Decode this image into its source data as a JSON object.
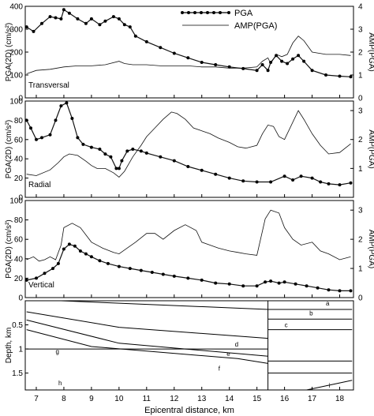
{
  "chart_data": {
    "type": "line",
    "legend": {
      "entries": [
        {
          "label": "PGA",
          "marker": "dot"
        },
        {
          "label": "AMP(PGA)",
          "marker": "none"
        }
      ],
      "placement": "top-right of first panel"
    },
    "x": {
      "label": "Epicentral distance, km",
      "range": [
        6.6,
        18.5
      ],
      "ticks": [
        "7",
        "8",
        "9",
        "10",
        "11",
        "12",
        "13",
        "14",
        "15",
        "16",
        "17",
        "18"
      ]
    },
    "panels": [
      {
        "label": "Transversal",
        "ylabel_left": "PGA(2D) (cm/s²)",
        "ylabel_right": "AMP(PGA)",
        "ylim_left": [
          0,
          400
        ],
        "yticks_left": [
          "0",
          "100",
          "200",
          "300",
          "400"
        ],
        "ylim_right": [
          0,
          4
        ],
        "yticks_right": [
          "0",
          "1",
          "2",
          "3",
          "4"
        ],
        "series": [
          {
            "name": "PGA",
            "axis": "left",
            "marker": "dot",
            "x": [
              6.65,
              6.9,
              7.2,
              7.5,
              7.7,
              7.9,
              8.0,
              8.2,
              8.5,
              8.8,
              9.0,
              9.3,
              9.5,
              9.8,
              10.0,
              10.2,
              10.4,
              10.6,
              11.0,
              11.5,
              12.0,
              12.5,
              13.0,
              13.5,
              14.0,
              14.5,
              15.0,
              15.2,
              15.4,
              15.5,
              15.7,
              15.9,
              16.1,
              16.3,
              16.5,
              16.7,
              17.0,
              17.5,
              18.0,
              18.4
            ],
            "y": [
              310,
              290,
              325,
              355,
              350,
              345,
              385,
              370,
              345,
              325,
              345,
              320,
              335,
              355,
              345,
              320,
              310,
              270,
              245,
              220,
              195,
              175,
              155,
              145,
              135,
              128,
              120,
              145,
              120,
              155,
              185,
              160,
              150,
              170,
              185,
              160,
              120,
              100,
              95,
              92
            ]
          },
          {
            "name": "AMP(PGA)",
            "axis": "right",
            "marker": "none",
            "x": [
              6.65,
              7.0,
              7.5,
              8.0,
              8.5,
              9.0,
              9.5,
              10.0,
              10.2,
              10.5,
              11.0,
              11.5,
              12.0,
              12.5,
              13.0,
              13.5,
              14.0,
              14.5,
              15.0,
              15.2,
              15.4,
              15.5,
              15.7,
              15.9,
              16.1,
              16.3,
              16.5,
              16.7,
              17.0,
              17.5,
              18.0,
              18.4
            ],
            "y": [
              1.05,
              1.2,
              1.25,
              1.35,
              1.4,
              1.4,
              1.45,
              1.6,
              1.5,
              1.45,
              1.45,
              1.4,
              1.4,
              1.4,
              1.35,
              1.35,
              1.3,
              1.3,
              1.35,
              1.6,
              1.75,
              1.5,
              1.9,
              1.8,
              1.9,
              2.4,
              2.7,
              2.5,
              2.0,
              1.9,
              1.9,
              1.85
            ]
          }
        ]
      },
      {
        "label": "Radial",
        "ylabel_left": "PGA(2D) (cm/s²)",
        "ylabel_right": "AMP(PGA)",
        "ylim_left": [
          0,
          100
        ],
        "yticks_left": [
          "0",
          "20",
          "40",
          "60",
          "80",
          "100"
        ],
        "ylim_right": [
          0,
          3.33
        ],
        "yticks_right": [
          "1",
          "2",
          "3"
        ],
        "series": [
          {
            "name": "PGA",
            "axis": "left",
            "marker": "dot",
            "x": [
              6.65,
              6.8,
              7.0,
              7.2,
              7.5,
              7.7,
              7.9,
              8.1,
              8.3,
              8.5,
              8.7,
              9.0,
              9.3,
              9.5,
              9.7,
              9.9,
              10.0,
              10.1,
              10.3,
              10.5,
              10.8,
              11.0,
              11.5,
              12.0,
              12.5,
              13.0,
              13.5,
              14.0,
              14.5,
              15.0,
              15.5,
              16.0,
              16.3,
              16.6,
              17.0,
              17.3,
              17.6,
              18.0,
              18.4
            ],
            "y": [
              80,
              72,
              60,
              62,
              65,
              80,
              95,
              98,
              82,
              62,
              55,
              52,
              50,
              45,
              42,
              30,
              30,
              38,
              48,
              50,
              48,
              46,
              42,
              38,
              32,
              28,
              24,
              20,
              17,
              16,
              16,
              22,
              18,
              22,
              20,
              16,
              14,
              13,
              15
            ]
          },
          {
            "name": "AMP(PGA)",
            "axis": "right",
            "marker": "none",
            "x": [
              6.65,
              7.0,
              7.5,
              7.8,
              8.0,
              8.2,
              8.5,
              8.8,
              9.0,
              9.2,
              9.5,
              9.8,
              10.0,
              10.2,
              10.5,
              10.8,
              11.0,
              11.3,
              11.6,
              11.9,
              12.1,
              12.4,
              12.7,
              13.0,
              13.3,
              13.6,
              14.0,
              14.3,
              14.6,
              15.0,
              15.2,
              15.4,
              15.6,
              15.8,
              16.0,
              16.2,
              16.5,
              16.7,
              17.0,
              17.3,
              17.6,
              18.0,
              18.4
            ],
            "y": [
              0.8,
              0.75,
              0.95,
              1.2,
              1.4,
              1.5,
              1.45,
              1.25,
              1.1,
              1.0,
              1.0,
              0.85,
              0.7,
              0.9,
              1.4,
              1.8,
              2.1,
              2.4,
              2.7,
              2.95,
              2.9,
              2.7,
              2.4,
              2.3,
              2.2,
              2.05,
              1.9,
              1.75,
              1.7,
              1.8,
              2.2,
              2.5,
              2.45,
              2.1,
              2.0,
              2.4,
              3.0,
              2.7,
              2.2,
              1.8,
              1.5,
              1.55,
              1.85
            ]
          }
        ]
      },
      {
        "label": "Vertical",
        "ylabel_left": "PGA(2D) (cm/s²)",
        "ylabel_right": "AMP(PGA)",
        "ylim_left": [
          0,
          100
        ],
        "yticks_left": [
          "0",
          "20",
          "40",
          "60",
          "80",
          "100"
        ],
        "ylim_right": [
          0,
          3.33
        ],
        "yticks_right": [
          "0",
          "1",
          "2",
          "3"
        ],
        "series": [
          {
            "name": "PGA",
            "axis": "left",
            "marker": "dot",
            "x": [
              6.65,
              7.0,
              7.3,
              7.6,
              7.8,
              8.0,
              8.2,
              8.4,
              8.6,
              8.8,
              9.0,
              9.3,
              9.6,
              10.0,
              10.4,
              10.8,
              11.2,
              11.6,
              12.0,
              12.5,
              13.0,
              13.5,
              14.0,
              14.5,
              15.0,
              15.3,
              15.5,
              15.8,
              16.0,
              16.4,
              16.8,
              17.2,
              17.6,
              18.0,
              18.4
            ],
            "y": [
              18,
              20,
              25,
              30,
              35,
              50,
              55,
              53,
              48,
              45,
              42,
              38,
              35,
              32,
              30,
              28,
              26,
              24,
              22,
              20,
              18,
              15,
              14,
              12,
              12,
              16,
              17,
              15,
              16,
              14,
              12,
              10,
              8,
              7,
              7
            ]
          },
          {
            "name": "AMP(PGA)",
            "axis": "right",
            "marker": "none",
            "x": [
              6.65,
              6.9,
              7.1,
              7.3,
              7.5,
              7.7,
              7.9,
              8.0,
              8.3,
              8.6,
              9.0,
              9.4,
              9.8,
              10.0,
              10.3,
              10.6,
              11.0,
              11.3,
              11.6,
              12.0,
              12.4,
              12.8,
              13.0,
              13.3,
              13.6,
              14.0,
              14.3,
              14.6,
              15.0,
              15.3,
              15.5,
              15.8,
              16.0,
              16.3,
              16.6,
              17.0,
              17.3,
              17.6,
              18.0,
              18.4
            ],
            "y": [
              1.3,
              1.4,
              1.25,
              1.3,
              1.4,
              1.3,
              1.8,
              2.4,
              2.55,
              2.4,
              1.9,
              1.7,
              1.55,
              1.5,
              1.7,
              1.9,
              2.2,
              2.2,
              2.0,
              2.3,
              2.5,
              2.3,
              1.9,
              1.8,
              1.7,
              1.6,
              1.55,
              1.5,
              1.45,
              2.7,
              3.0,
              2.9,
              2.4,
              2.0,
              1.8,
              1.9,
              1.6,
              1.5,
              1.3,
              1.4
            ]
          }
        ]
      }
    ],
    "geology": {
      "ylabel": "Depth, km",
      "ylim": [
        1.85,
        0
      ],
      "yticks": [
        "0.5",
        "1",
        "1.5"
      ],
      "layer_labels": [
        "a",
        "b",
        "c",
        "d",
        "e",
        "f",
        "g",
        "h",
        "i"
      ]
    }
  }
}
